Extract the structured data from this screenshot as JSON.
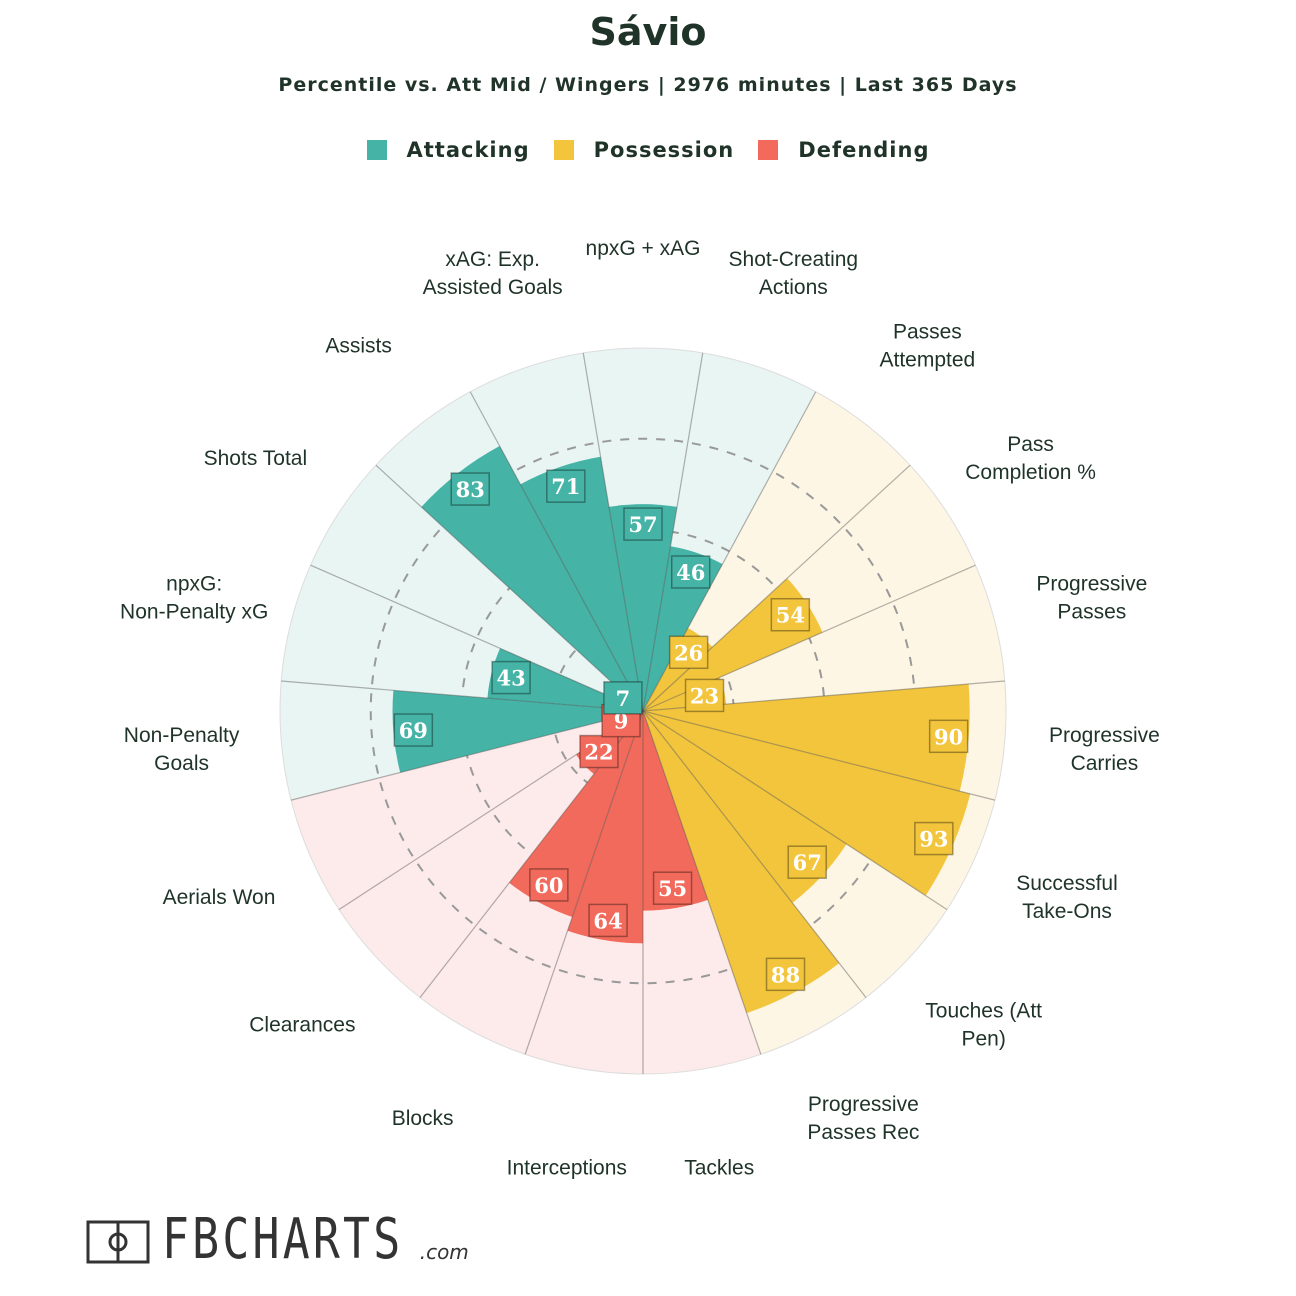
{
  "title": "Sávio",
  "subtitle": "Percentile vs. Att Mid / Wingers | 2976 minutes | Last 365 Days",
  "legend": [
    {
      "label": "Attacking",
      "color": "#45b3a5"
    },
    {
      "label": "Possession",
      "color": "#f3c53c"
    },
    {
      "label": "Defending",
      "color": "#f26a5b"
    }
  ],
  "brand": {
    "name": "FBCHARTS",
    "suffix": ".com",
    "logo": "pitch-logo-icon"
  },
  "chart_data": {
    "type": "polar-bar",
    "rlim": [
      0,
      100
    ],
    "grid": "dashed rings at 25, 50, 75",
    "categories": [
      {
        "label": "npxG + xAG",
        "group": "Attacking",
        "value": 57
      },
      {
        "label": "Shot-Creating Actions",
        "group": "Attacking",
        "value": 46
      },
      {
        "label": "Passes Attempted",
        "group": "Possession",
        "value": 26
      },
      {
        "label": "Pass Completion %",
        "group": "Possession",
        "value": 54
      },
      {
        "label": "Progressive Passes",
        "group": "Possession",
        "value": 23
      },
      {
        "label": "Progressive Carries",
        "group": "Possession",
        "value": 90
      },
      {
        "label": "Successful Take-Ons",
        "group": "Possession",
        "value": 93
      },
      {
        "label": "Touches (Att Pen)",
        "group": "Possession",
        "value": 67
      },
      {
        "label": "Progressive Passes Rec",
        "group": "Possession",
        "value": 88
      },
      {
        "label": "Tackles",
        "group": "Defending",
        "value": 55
      },
      {
        "label": "Interceptions",
        "group": "Defending",
        "value": 64
      },
      {
        "label": "Blocks",
        "group": "Defending",
        "value": 60
      },
      {
        "label": "Clearances",
        "group": "Defending",
        "value": 22
      },
      {
        "label": "Aerials Won",
        "group": "Defending",
        "value": 9
      },
      {
        "label": "Non-Penalty Goals",
        "group": "Attacking",
        "value": 69
      },
      {
        "label": "npxG: Non-Penalty xG",
        "group": "Attacking",
        "value": 43
      },
      {
        "label": "Shots Total",
        "group": "Attacking",
        "value": 7
      },
      {
        "label": "Assists",
        "group": "Attacking",
        "value": 83
      },
      {
        "label": "xAG: Exp. Assisted Goals",
        "group": "Attacking",
        "value": 71
      }
    ]
  }
}
